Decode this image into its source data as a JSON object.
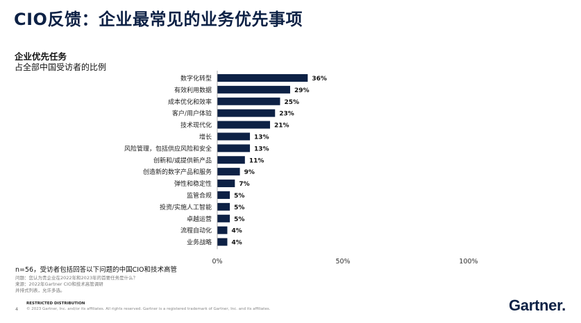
{
  "page": {
    "title": "CIO反馈：企业最常见的业务优先事项",
    "subtitle": "企业优先任务",
    "subtitle2": "占全部中国受访者的比例",
    "footnote_n": "n=56，受访者包括回答以下问题的中国CIO和技术高管",
    "footnote_q": "问题：您认为贵企业在2022年和2023年的首要任务是什么？",
    "footnote_source": "来源：2022年Gartner CIO和技术高管调研",
    "footnote_note": "并排式列表，允许多选。",
    "page_number": "4",
    "restricted": "RESTRICTED DISTRIBUTION",
    "copyright": "© 2023 Gartner, Inc. and/or its affiliates. All rights reserved. Gartner is a registered trademark of Gartner, Inc. and its affiliates.",
    "logo": "Gartner"
  },
  "chart_data": {
    "type": "bar",
    "orientation": "horizontal",
    "categories": [
      "数字化转型",
      "有效利用数据",
      "成本优化和效率",
      "客户/用户体验",
      "技术现代化",
      "增长",
      "风险管理，包括供应风险和安全",
      "创新和/或提供新产品",
      "创造新的数字产品和服务",
      "弹性和稳定性",
      "监管合规",
      "投资/实施人工智能",
      "卓越运营",
      "流程自动化",
      "业务战略"
    ],
    "values": [
      36,
      29,
      25,
      23,
      21,
      13,
      13,
      11,
      9,
      7,
      5,
      5,
      5,
      4,
      4
    ],
    "value_labels": [
      "36%",
      "29%",
      "25%",
      "23%",
      "21%",
      "13%",
      "13%",
      "11%",
      "9%",
      "7%",
      "5%",
      "5%",
      "5%",
      "4%",
      "4%"
    ],
    "xlim": [
      0,
      100
    ],
    "xticks": [
      "0%",
      "50%",
      "100%"
    ],
    "bar_color": "#0d2145",
    "grid": false,
    "legend": "none"
  }
}
